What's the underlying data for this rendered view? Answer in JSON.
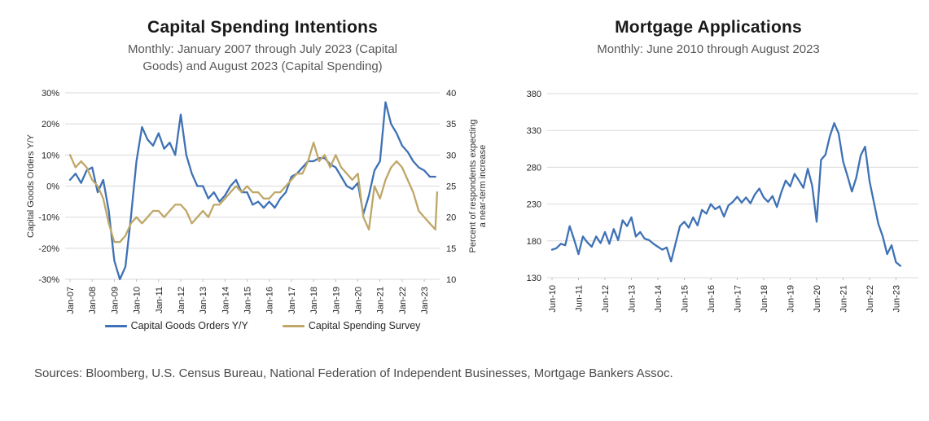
{
  "figure": {
    "sources": "Sources: Bloomberg, U.S. Census Bureau, National Federation of Independent Businesses, Mortgage Bankers Assoc."
  },
  "colors": {
    "series_blue": "#3E71B5",
    "series_tan": "#BFA768",
    "grid": "#D9D9D9",
    "axis_line": "#BFBFBF",
    "title_text": "#191919",
    "subtitle_text": "#595959",
    "tick_text": "#262626"
  },
  "chart_data": [
    {
      "type": "line",
      "title": "Capital Spending Intentions",
      "subtitle_lines": [
        "Monthly: January 2007 through July 2023 (Capital",
        "Goods) and August 2023 (Capital Spending)"
      ],
      "grid": true,
      "legend_position": "bottom",
      "x_axis": {
        "unit": "months since Jan-2007",
        "tick_labels": [
          "Jan-07",
          "Jan-08",
          "Jan-09",
          "Jan-10",
          "Jan-11",
          "Jan-12",
          "Jan-13",
          "Jan-14",
          "Jan-15",
          "Jan-16",
          "Jan-17",
          "Jan-18",
          "Jan-19",
          "Jan-20",
          "Jan-21",
          "Jan-22",
          "Jan-23"
        ],
        "tick_months": [
          0,
          12,
          24,
          36,
          48,
          60,
          72,
          84,
          96,
          108,
          120,
          132,
          144,
          156,
          168,
          180,
          192
        ]
      },
      "y_left": {
        "label": "Capital Goods Orders Y/Y",
        "ticks": [
          30,
          20,
          10,
          0,
          -10,
          -20,
          -30
        ],
        "tick_suffix": "%",
        "range": [
          -30,
          30
        ]
      },
      "y_right": {
        "label_lines": [
          "Percent of respondents expecting",
          "a near-term increase"
        ],
        "ticks": [
          40,
          35,
          30,
          25,
          20,
          15,
          10
        ],
        "range": [
          10,
          40
        ]
      },
      "series": [
        {
          "name": "Capital Goods Orders Y/Y",
          "slug": "capital-goods-orders",
          "axis": "left",
          "color": "#3E71B5",
          "x_months": [
            0,
            3,
            6,
            9,
            12,
            15,
            18,
            21,
            24,
            27,
            30,
            33,
            36,
            39,
            42,
            45,
            48,
            51,
            54,
            57,
            60,
            63,
            66,
            69,
            72,
            75,
            78,
            81,
            84,
            87,
            90,
            93,
            96,
            99,
            102,
            105,
            108,
            111,
            114,
            117,
            120,
            123,
            126,
            129,
            132,
            135,
            138,
            141,
            144,
            147,
            150,
            153,
            156,
            159,
            162,
            165,
            168,
            171,
            174,
            177,
            180,
            183,
            186,
            189,
            192,
            195,
            198
          ],
          "values": [
            2,
            4,
            1,
            5,
            6,
            -2,
            2,
            -8,
            -24,
            -30,
            -26,
            -10,
            8,
            19,
            15,
            13,
            17,
            12,
            14,
            10,
            23,
            10,
            4,
            0,
            0,
            -4,
            -2,
            -5,
            -3,
            0,
            2,
            -2,
            -2,
            -6,
            -5,
            -7,
            -5,
            -7,
            -4,
            -2,
            3,
            4,
            6,
            8,
            8,
            9,
            9,
            7,
            6,
            3,
            0,
            -1,
            1,
            -9,
            -3,
            5,
            8,
            27,
            20,
            17,
            13,
            11,
            8,
            6,
            5,
            3,
            3
          ]
        },
        {
          "name": "Capital Spending Survey",
          "slug": "capital-spending-survey",
          "axis": "right",
          "color": "#BFA768",
          "x_months": [
            0,
            3,
            6,
            9,
            12,
            15,
            18,
            21,
            24,
            27,
            30,
            33,
            36,
            39,
            42,
            45,
            48,
            51,
            54,
            57,
            60,
            63,
            66,
            69,
            72,
            75,
            78,
            81,
            84,
            87,
            90,
            93,
            96,
            99,
            102,
            105,
            108,
            111,
            114,
            117,
            120,
            123,
            126,
            129,
            132,
            135,
            138,
            141,
            144,
            147,
            150,
            153,
            156,
            159,
            162,
            165,
            168,
            171,
            174,
            177,
            180,
            183,
            186,
            189,
            192,
            195,
            198,
            199
          ],
          "values": [
            30,
            28,
            29,
            28,
            26,
            25,
            23,
            19,
            16,
            16,
            17,
            19,
            20,
            19,
            20,
            21,
            21,
            20,
            21,
            22,
            22,
            21,
            19,
            20,
            21,
            20,
            22,
            22,
            23,
            24,
            25,
            24,
            25,
            24,
            24,
            23,
            23,
            24,
            24,
            25,
            26,
            27,
            27,
            29,
            32,
            29,
            30,
            28,
            30,
            28,
            27,
            26,
            27,
            20,
            18,
            25,
            23,
            26,
            28,
            29,
            28,
            26,
            24,
            21,
            20,
            19,
            18,
            24
          ]
        }
      ]
    },
    {
      "type": "line",
      "title": "Mortgage Applications",
      "subtitle_lines": [
        "Monthly: June 2010 through August 2023"
      ],
      "grid": true,
      "x_axis": {
        "unit": "months since Jun-2010",
        "tick_labels": [
          "Jun-10",
          "Jun-11",
          "Jun-12",
          "Jun-13",
          "Jun-14",
          "Jun-15",
          "Jun-16",
          "Jun-17",
          "Jun-18",
          "Jun-19",
          "Jun-20",
          "Jun-21",
          "Jun-22",
          "Jun-23"
        ],
        "tick_months": [
          0,
          12,
          24,
          36,
          48,
          60,
          72,
          84,
          96,
          108,
          120,
          132,
          144,
          156
        ]
      },
      "y_axis": {
        "ticks": [
          380,
          330,
          280,
          230,
          180,
          130
        ],
        "range": [
          130,
          380
        ]
      },
      "series": [
        {
          "name": "Mortgage Applications",
          "slug": "mortgage-applications",
          "axis": "left",
          "color": "#3E71B5",
          "x_months": [
            0,
            2,
            4,
            6,
            8,
            10,
            12,
            14,
            16,
            18,
            20,
            22,
            24,
            26,
            28,
            30,
            32,
            34,
            36,
            38,
            40,
            42,
            44,
            46,
            48,
            50,
            52,
            54,
            56,
            58,
            60,
            62,
            64,
            66,
            68,
            70,
            72,
            74,
            76,
            78,
            80,
            82,
            84,
            86,
            88,
            90,
            92,
            94,
            96,
            98,
            100,
            102,
            104,
            106,
            108,
            110,
            112,
            114,
            116,
            118,
            120,
            122,
            124,
            126,
            128,
            130,
            132,
            134,
            136,
            138,
            140,
            142,
            144,
            146,
            148,
            150,
            152,
            154,
            156,
            158
          ],
          "values": [
            168,
            170,
            176,
            174,
            200,
            182,
            162,
            186,
            178,
            172,
            186,
            177,
            192,
            176,
            196,
            181,
            208,
            200,
            212,
            186,
            192,
            183,
            181,
            176,
            172,
            168,
            171,
            152,
            176,
            200,
            206,
            198,
            212,
            201,
            222,
            217,
            230,
            223,
            227,
            213,
            228,
            233,
            240,
            232,
            239,
            231,
            243,
            251,
            239,
            233,
            241,
            226,
            246,
            262,
            254,
            271,
            262,
            252,
            278,
            255,
            206,
            290,
            297,
            322,
            340,
            326,
            288,
            268,
            247,
            266,
            296,
            308,
            261,
            232,
            203,
            186,
            162,
            174,
            151,
            146
          ]
        }
      ]
    }
  ]
}
